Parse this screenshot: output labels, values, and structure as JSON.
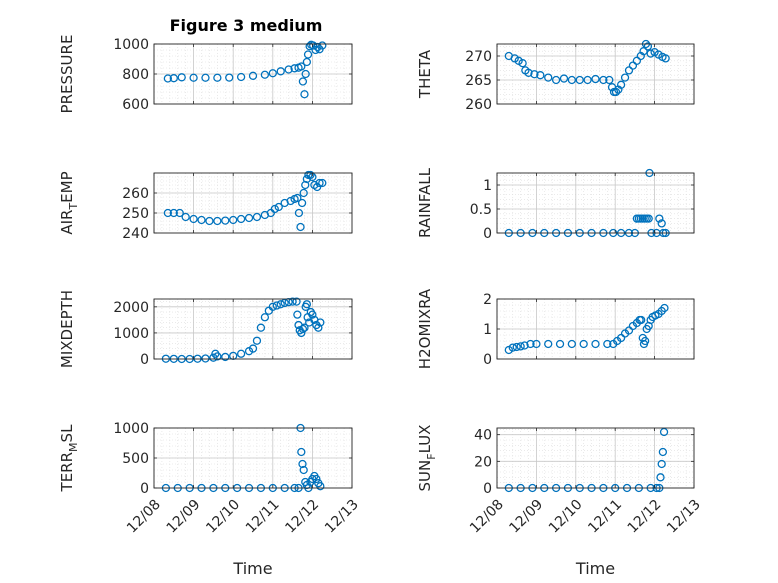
{
  "figure": {
    "title": "Figure 3 medium",
    "marker_color": "#0072BD",
    "xlabel_left": "Time",
    "xlabel_right": "Time",
    "x_tick_labels": [
      "12/08",
      "12/09",
      "12/10",
      "12/11",
      "12/12",
      "12/13"
    ]
  },
  "chart_data": [
    {
      "type": "scatter",
      "panel": "top-left",
      "marker": "circle-open",
      "grid": true,
      "ylabel": "PRESSURE",
      "ylabel_sub": "",
      "xlim": [
        8,
        13
      ],
      "ylim": [
        600,
        1000
      ],
      "yticks": [
        600,
        800,
        1000
      ],
      "x_tick_labels": [],
      "xlabel": "",
      "points": [
        [
          8.35,
          770
        ],
        [
          8.5,
          772
        ],
        [
          8.7,
          778
        ],
        [
          9.0,
          775
        ],
        [
          9.3,
          775
        ],
        [
          9.6,
          775
        ],
        [
          9.9,
          776
        ],
        [
          10.2,
          780
        ],
        [
          10.5,
          788
        ],
        [
          10.8,
          795
        ],
        [
          11.0,
          805
        ],
        [
          11.2,
          818
        ],
        [
          11.4,
          830
        ],
        [
          11.55,
          838
        ],
        [
          11.65,
          842
        ],
        [
          11.72,
          850
        ],
        [
          11.76,
          750
        ],
        [
          11.8,
          665
        ],
        [
          11.83,
          800
        ],
        [
          11.86,
          880
        ],
        [
          11.89,
          930
        ],
        [
          11.93,
          985
        ],
        [
          11.97,
          995
        ],
        [
          12.02,
          990
        ],
        [
          12.08,
          960
        ],
        [
          12.13,
          980
        ],
        [
          12.18,
          965
        ],
        [
          12.25,
          990
        ]
      ]
    },
    {
      "type": "scatter",
      "panel": "top-right",
      "marker": "circle-open",
      "grid": true,
      "ylabel": "THETA",
      "ylabel_sub": "",
      "xlim": [
        8,
        13
      ],
      "ylim": [
        260,
        272.5
      ],
      "yticks": [
        260,
        265,
        270
      ],
      "x_tick_labels": [],
      "xlabel": "",
      "points": [
        [
          8.3,
          270
        ],
        [
          8.45,
          269.5
        ],
        [
          8.55,
          269
        ],
        [
          8.65,
          268.5
        ],
        [
          8.72,
          267
        ],
        [
          8.8,
          266.5
        ],
        [
          8.95,
          266.2
        ],
        [
          9.1,
          266
        ],
        [
          9.3,
          265.5
        ],
        [
          9.5,
          265
        ],
        [
          9.7,
          265.3
        ],
        [
          9.9,
          265
        ],
        [
          10.1,
          265
        ],
        [
          10.3,
          265
        ],
        [
          10.5,
          265.2
        ],
        [
          10.7,
          265
        ],
        [
          10.85,
          265
        ],
        [
          10.92,
          263.5
        ],
        [
          10.97,
          262.5
        ],
        [
          11.02,
          262.5
        ],
        [
          11.08,
          263
        ],
        [
          11.15,
          264
        ],
        [
          11.25,
          265.5
        ],
        [
          11.35,
          267
        ],
        [
          11.45,
          268
        ],
        [
          11.55,
          269
        ],
        [
          11.65,
          270
        ],
        [
          11.72,
          271
        ],
        [
          11.78,
          272.5
        ],
        [
          11.83,
          272
        ],
        [
          11.9,
          270.5
        ],
        [
          12.0,
          270.8
        ],
        [
          12.1,
          270.3
        ],
        [
          12.2,
          269.8
        ],
        [
          12.28,
          269.5
        ]
      ]
    },
    {
      "type": "scatter",
      "panel": "row2-left",
      "marker": "circle-open",
      "grid": true,
      "ylabel": "AIR",
      "ylabel_sub": "T",
      "ylabel_tail": "EMP",
      "xlim": [
        8,
        13
      ],
      "ylim": [
        240,
        270
      ],
      "yticks": [
        240,
        250,
        260
      ],
      "x_tick_labels": [],
      "xlabel": "",
      "points": [
        [
          8.35,
          250
        ],
        [
          8.5,
          250
        ],
        [
          8.65,
          250
        ],
        [
          8.8,
          248
        ],
        [
          9.0,
          247
        ],
        [
          9.2,
          246.5
        ],
        [
          9.4,
          246
        ],
        [
          9.6,
          246
        ],
        [
          9.8,
          246.2
        ],
        [
          10.0,
          246.5
        ],
        [
          10.2,
          247
        ],
        [
          10.4,
          247.5
        ],
        [
          10.6,
          248
        ],
        [
          10.8,
          249
        ],
        [
          10.95,
          250
        ],
        [
          11.05,
          252
        ],
        [
          11.15,
          253
        ],
        [
          11.3,
          255
        ],
        [
          11.45,
          256
        ],
        [
          11.55,
          257
        ],
        [
          11.62,
          257.5
        ],
        [
          11.66,
          250
        ],
        [
          11.7,
          243
        ],
        [
          11.74,
          255
        ],
        [
          11.78,
          260
        ],
        [
          11.82,
          264
        ],
        [
          11.86,
          267
        ],
        [
          11.9,
          269
        ],
        [
          11.95,
          269
        ],
        [
          12.0,
          268
        ],
        [
          12.05,
          264
        ],
        [
          12.12,
          263
        ],
        [
          12.18,
          265
        ],
        [
          12.25,
          265
        ]
      ]
    },
    {
      "type": "scatter",
      "panel": "row2-right",
      "marker": "circle-open",
      "grid": true,
      "ylabel": "RAINFALL",
      "ylabel_sub": "",
      "xlim": [
        8,
        13
      ],
      "ylim": [
        0,
        1.25
      ],
      "yticks": [
        0,
        0.5,
        1
      ],
      "x_tick_labels": [],
      "xlabel": "",
      "points": [
        [
          8.3,
          0
        ],
        [
          8.6,
          0
        ],
        [
          8.9,
          0
        ],
        [
          9.2,
          0
        ],
        [
          9.5,
          0
        ],
        [
          9.8,
          0
        ],
        [
          10.1,
          0
        ],
        [
          10.4,
          0
        ],
        [
          10.7,
          0
        ],
        [
          10.95,
          0
        ],
        [
          11.15,
          0
        ],
        [
          11.35,
          0
        ],
        [
          11.5,
          0
        ],
        [
          11.55,
          0.3
        ],
        [
          11.6,
          0.3
        ],
        [
          11.65,
          0.3
        ],
        [
          11.7,
          0.3
        ],
        [
          11.75,
          0.3
        ],
        [
          11.8,
          0.3
        ],
        [
          11.85,
          0.3
        ],
        [
          11.87,
          1.25
        ],
        [
          11.92,
          0
        ],
        [
          12.05,
          0
        ],
        [
          12.12,
          0.3
        ],
        [
          12.18,
          0.2
        ],
        [
          12.22,
          0
        ],
        [
          12.28,
          0
        ]
      ]
    },
    {
      "type": "scatter",
      "panel": "row3-left",
      "marker": "circle-open",
      "grid": true,
      "ylabel": "MIXDEPTH",
      "ylabel_sub": "",
      "xlim": [
        8,
        13
      ],
      "ylim": [
        0,
        2300
      ],
      "yticks": [
        0,
        1000,
        2000
      ],
      "x_tick_labels": [],
      "xlabel": "",
      "points": [
        [
          8.3,
          10
        ],
        [
          8.5,
          5
        ],
        [
          8.7,
          0
        ],
        [
          8.9,
          0
        ],
        [
          9.1,
          10
        ],
        [
          9.3,
          20
        ],
        [
          9.5,
          50
        ],
        [
          9.55,
          200
        ],
        [
          9.6,
          100
        ],
        [
          9.8,
          80
        ],
        [
          10.0,
          120
        ],
        [
          10.2,
          200
        ],
        [
          10.4,
          300
        ],
        [
          10.5,
          400
        ],
        [
          10.6,
          700
        ],
        [
          10.7,
          1200
        ],
        [
          10.8,
          1600
        ],
        [
          10.9,
          1850
        ],
        [
          11.0,
          2000
        ],
        [
          11.1,
          2050
        ],
        [
          11.2,
          2100
        ],
        [
          11.3,
          2150
        ],
        [
          11.4,
          2180
        ],
        [
          11.5,
          2200
        ],
        [
          11.6,
          2200
        ],
        [
          11.62,
          1700
        ],
        [
          11.65,
          1300
        ],
        [
          11.68,
          1100
        ],
        [
          11.72,
          1000
        ],
        [
          11.76,
          1150
        ],
        [
          11.8,
          1200
        ],
        [
          11.83,
          2000
        ],
        [
          11.86,
          2100
        ],
        [
          11.88,
          1600
        ],
        [
          11.92,
          1400
        ],
        [
          11.96,
          1800
        ],
        [
          12.0,
          1700
        ],
        [
          12.05,
          1500
        ],
        [
          12.1,
          1300
        ],
        [
          12.15,
          1200
        ],
        [
          12.2,
          1400
        ]
      ]
    },
    {
      "type": "scatter",
      "panel": "row3-right",
      "marker": "circle-open",
      "grid": true,
      "ylabel": "H2OMIXRA",
      "ylabel_sub": "",
      "xlim": [
        8,
        13
      ],
      "ylim": [
        0,
        2
      ],
      "yticks": [
        0,
        1,
        2
      ],
      "x_tick_labels": [],
      "xlabel": "",
      "points": [
        [
          8.3,
          0.3
        ],
        [
          8.4,
          0.38
        ],
        [
          8.5,
          0.4
        ],
        [
          8.6,
          0.42
        ],
        [
          8.7,
          0.45
        ],
        [
          8.85,
          0.5
        ],
        [
          9.0,
          0.5
        ],
        [
          9.3,
          0.5
        ],
        [
          9.6,
          0.5
        ],
        [
          9.9,
          0.5
        ],
        [
          10.2,
          0.5
        ],
        [
          10.5,
          0.5
        ],
        [
          10.8,
          0.5
        ],
        [
          10.95,
          0.5
        ],
        [
          11.05,
          0.6
        ],
        [
          11.15,
          0.7
        ],
        [
          11.25,
          0.85
        ],
        [
          11.35,
          0.95
        ],
        [
          11.45,
          1.1
        ],
        [
          11.55,
          1.2
        ],
        [
          11.62,
          1.3
        ],
        [
          11.66,
          1.3
        ],
        [
          11.7,
          0.7
        ],
        [
          11.73,
          0.5
        ],
        [
          11.76,
          0.6
        ],
        [
          11.8,
          1.0
        ],
        [
          11.85,
          1.1
        ],
        [
          11.9,
          1.3
        ],
        [
          11.95,
          1.4
        ],
        [
          12.02,
          1.45
        ],
        [
          12.1,
          1.5
        ],
        [
          12.18,
          1.6
        ],
        [
          12.25,
          1.7
        ]
      ]
    },
    {
      "type": "scatter",
      "panel": "bottom-left",
      "marker": "circle-open",
      "grid": true,
      "ylabel": "TERR",
      "ylabel_sub": "M",
      "ylabel_tail": "SL",
      "xlim": [
        8,
        13
      ],
      "ylim": [
        0,
        1000
      ],
      "yticks": [
        0,
        500,
        1000
      ],
      "x_tick_labels": [
        "12/08",
        "12/09",
        "12/10",
        "12/11",
        "12/12",
        "12/13"
      ],
      "xlabel": "Time",
      "points": [
        [
          8.3,
          0
        ],
        [
          8.6,
          0
        ],
        [
          8.9,
          0
        ],
        [
          9.2,
          0
        ],
        [
          9.5,
          0
        ],
        [
          9.8,
          0
        ],
        [
          10.1,
          0
        ],
        [
          10.4,
          0
        ],
        [
          10.7,
          0
        ],
        [
          11.0,
          0
        ],
        [
          11.3,
          0
        ],
        [
          11.55,
          0
        ],
        [
          11.65,
          0
        ],
        [
          11.7,
          1000
        ],
        [
          11.72,
          600
        ],
        [
          11.75,
          400
        ],
        [
          11.78,
          300
        ],
        [
          11.82,
          100
        ],
        [
          11.86,
          50
        ],
        [
          11.9,
          0
        ],
        [
          11.95,
          100
        ],
        [
          12.0,
          150
        ],
        [
          12.05,
          200
        ],
        [
          12.1,
          150
        ],
        [
          12.15,
          80
        ],
        [
          12.2,
          30
        ]
      ]
    },
    {
      "type": "scatter",
      "panel": "bottom-right",
      "marker": "circle-open",
      "grid": true,
      "ylabel": "SUN",
      "ylabel_sub": "F",
      "ylabel_tail": "LUX",
      "xlim": [
        8,
        13
      ],
      "ylim": [
        0,
        45
      ],
      "yticks": [
        0,
        20,
        40
      ],
      "x_tick_labels": [
        "12/08",
        "12/09",
        "12/10",
        "12/11",
        "12/12",
        "12/13"
      ],
      "xlabel": "Time",
      "points": [
        [
          8.3,
          0
        ],
        [
          8.6,
          0
        ],
        [
          8.9,
          0
        ],
        [
          9.2,
          0
        ],
        [
          9.5,
          0
        ],
        [
          9.8,
          0
        ],
        [
          10.1,
          0
        ],
        [
          10.4,
          0
        ],
        [
          10.7,
          0
        ],
        [
          11.0,
          0
        ],
        [
          11.3,
          0
        ],
        [
          11.6,
          0
        ],
        [
          11.9,
          0
        ],
        [
          12.05,
          0
        ],
        [
          12.12,
          0
        ],
        [
          12.15,
          8
        ],
        [
          12.18,
          18
        ],
        [
          12.21,
          27
        ],
        [
          12.24,
          42
        ]
      ]
    }
  ]
}
